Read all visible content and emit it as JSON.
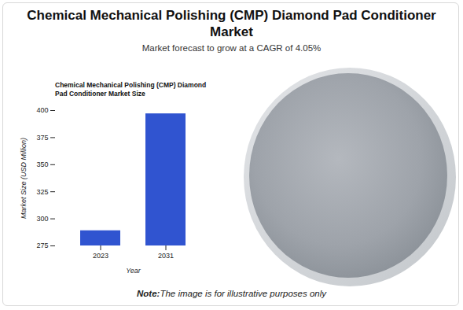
{
  "header": {
    "title": "Chemical Mechanical Polishing (CMP) Diamond Pad Conditioner Market",
    "subtitle": "Market forecast to grow at a CAGR of 4.05%"
  },
  "chart_data": {
    "type": "bar",
    "title": "Chemical Mechanical Polishing (CMP) Diamond Pad Conditioner Market Size",
    "x_label": "Year",
    "y_label": "Market Size (USD Million)",
    "categories": [
      "2023",
      "2031"
    ],
    "values": [
      289,
      397
    ],
    "color": "#3054d0",
    "ylim": [
      275,
      400
    ],
    "yticks": [
      275,
      300,
      325,
      350,
      375,
      400
    ],
    "grid": false
  },
  "note": {
    "label": "Note:",
    "text": "The image is for illustrative purposes only"
  }
}
